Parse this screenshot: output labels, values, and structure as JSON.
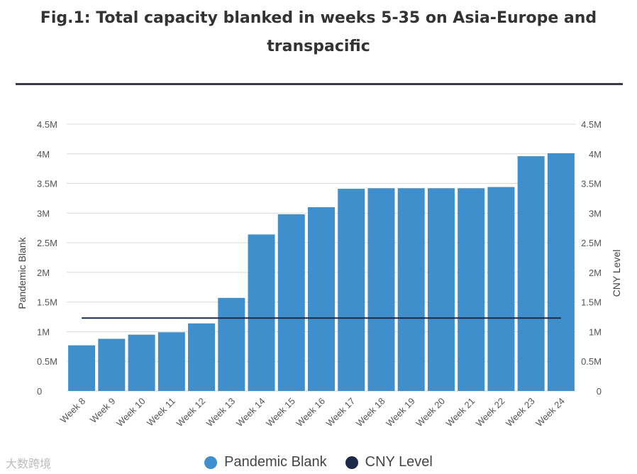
{
  "chart_data": {
    "type": "bar",
    "title": "Fig.1: Total capacity blanked in weeks 5-35 on Asia-Europe and transpacific",
    "categories": [
      "Week 8",
      "Week 9",
      "Week 10",
      "Week 11",
      "Week 12",
      "Week 13",
      "Week 14",
      "Week 15",
      "Week 16",
      "Week 17",
      "Week 18",
      "Week 19",
      "Week 20",
      "Week 21",
      "Week 22",
      "Week 23",
      "Week 24"
    ],
    "series": [
      {
        "name": "Pandemic Blank",
        "type": "bar",
        "color": "#3f8fcd",
        "values": [
          770000,
          880000,
          950000,
          990000,
          1140000,
          1570000,
          2640000,
          2980000,
          3100000,
          3410000,
          3420000,
          3420000,
          3420000,
          3420000,
          3440000,
          3960000,
          4010000
        ]
      },
      {
        "name": "CNY Level",
        "type": "line",
        "color": "#1a2a4a",
        "value": 1230000
      }
    ],
    "ylabel_left": "Pandemic Blank",
    "ylabel_right": "CNY Level",
    "ylim": [
      0,
      4500000
    ],
    "yticks": [
      "0",
      "0.5M",
      "1M",
      "1.5M",
      "2M",
      "2.5M",
      "3M",
      "3.5M",
      "4M",
      "4.5M"
    ],
    "grid": true,
    "legend_position": "bottom-center"
  },
  "watermark": "大数跨境"
}
